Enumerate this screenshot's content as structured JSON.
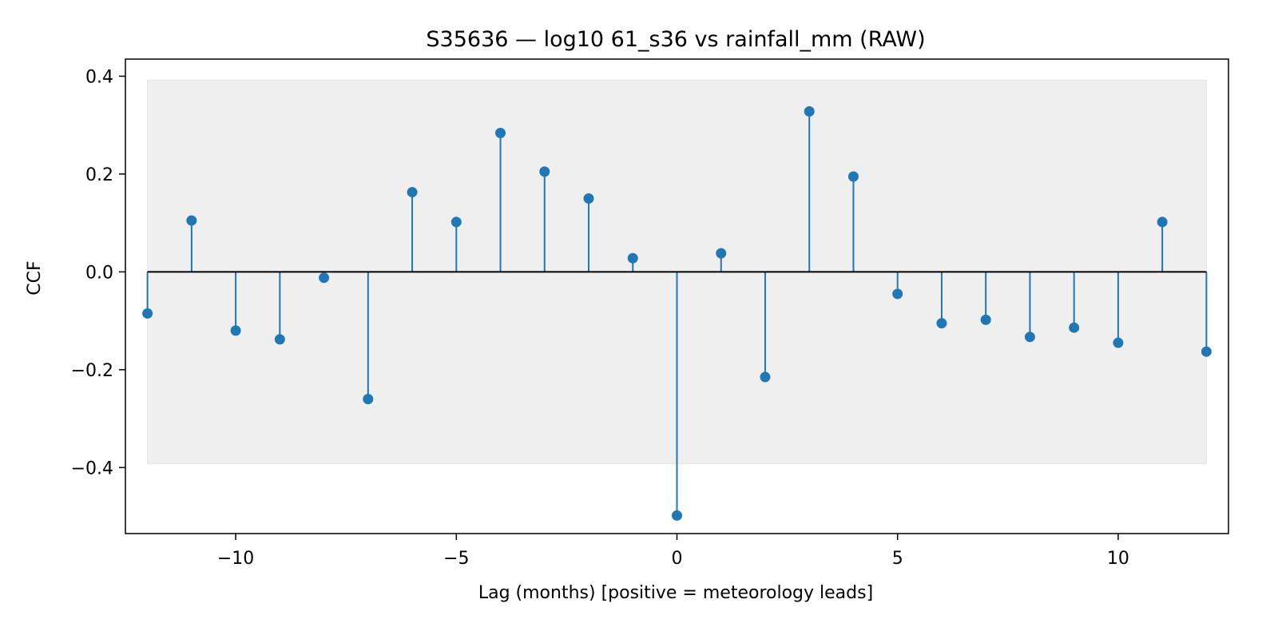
{
  "chart_data": {
    "type": "stem",
    "title": "S35636 — log10 61_s36 vs rainfall_mm (RAW)",
    "xlabel": "Lag (months)  [positive = meteorology leads]",
    "ylabel": "CCF",
    "xlim": [
      -12.5,
      12.5
    ],
    "ylim": [
      -0.535,
      0.435
    ],
    "xticks": [
      -10,
      -5,
      0,
      5,
      10
    ],
    "xtick_labels": [
      "−10",
      "−5",
      "0",
      "5",
      "10"
    ],
    "yticks": [
      -0.4,
      -0.2,
      0.0,
      0.2,
      0.4
    ],
    "ytick_labels": [
      "−0.4",
      "−0.2",
      "0.0",
      "0.2",
      "0.4"
    ],
    "confidence_band": [
      -0.392,
      0.392
    ],
    "grid": false,
    "series": [
      {
        "x": [
          -12,
          -11,
          -10,
          -9,
          -8,
          -7,
          -6,
          -5,
          -4,
          -3,
          -2,
          -1,
          0,
          1,
          2,
          3,
          4,
          5,
          6,
          7,
          8,
          9,
          10,
          11,
          12
        ],
        "values": [
          -0.085,
          0.105,
          -0.12,
          -0.138,
          -0.012,
          -0.26,
          0.163,
          0.102,
          0.284,
          0.205,
          0.15,
          0.028,
          -0.498,
          0.038,
          -0.215,
          0.328,
          0.195,
          -0.045,
          -0.105,
          -0.098,
          -0.133,
          -0.114,
          -0.145,
          0.102,
          -0.163
        ]
      }
    ],
    "colors": {
      "stem": "#1f77b4",
      "band": "#efefef",
      "baseline": "#000000"
    }
  }
}
